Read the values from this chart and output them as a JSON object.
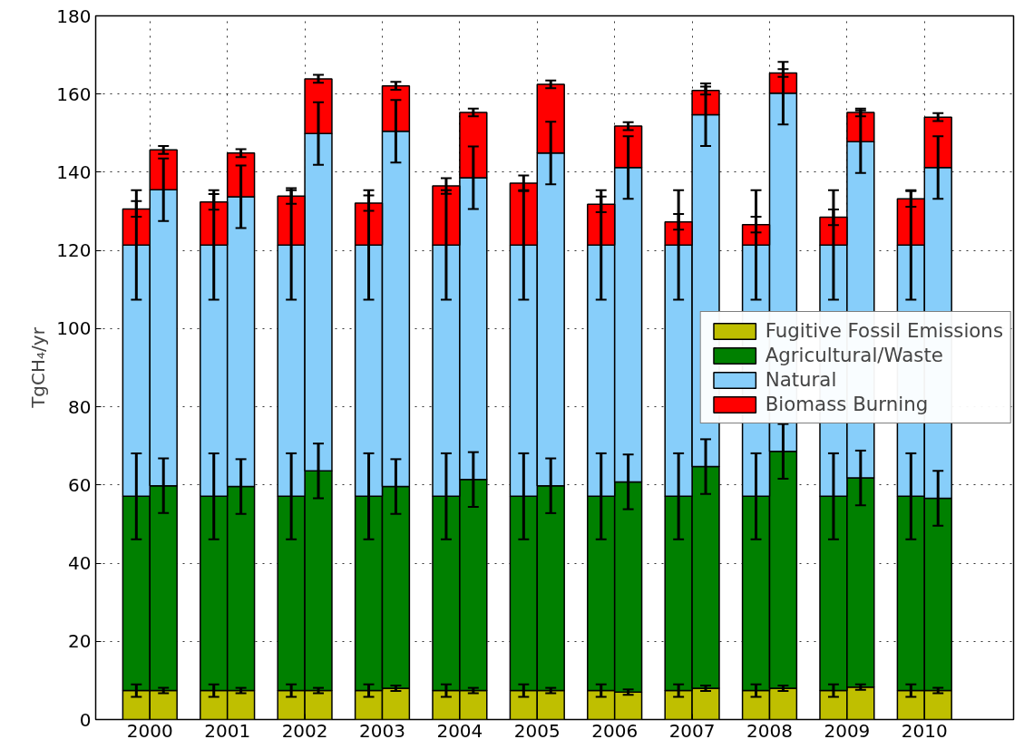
{
  "chart_data": {
    "type": "bar",
    "stacked": true,
    "ylabel": "TgCH₄/yr",
    "x": [
      1999.825,
      2000.175,
      2000.825,
      2001.175,
      2001.825,
      2002.175,
      2002.825,
      2003.175,
      2003.825,
      2004.175,
      2004.825,
      2005.175,
      2005.825,
      2006.175,
      2006.825,
      2007.175,
      2007.825,
      2008.175,
      2008.825,
      2009.175,
      2009.825,
      2010.175
    ],
    "xlim": [
      1999.3,
      2011.15
    ],
    "xticks": [
      2000,
      2001,
      2002,
      2003,
      2004,
      2005,
      2006,
      2007,
      2008,
      2009,
      2010
    ],
    "ylim": [
      0,
      180
    ],
    "yticks": [
      0,
      20,
      40,
      60,
      80,
      100,
      120,
      140,
      160,
      180
    ],
    "grid": true,
    "legend": "right",
    "series": [
      {
        "name": "Fugitive Fossil Emissions",
        "color": "#bfbf00",
        "values": [
          7.4,
          7.4,
          7.4,
          7.4,
          7.4,
          7.4,
          7.4,
          8.0,
          7.4,
          7.4,
          7.4,
          7.4,
          7.4,
          7.0,
          7.4,
          8.0,
          7.4,
          8.0,
          7.4,
          8.3,
          7.4,
          7.4
        ],
        "errors": [
          1.6,
          0.7,
          1.6,
          0.7,
          1.6,
          0.7,
          1.6,
          0.7,
          1.6,
          0.7,
          1.6,
          0.7,
          1.6,
          0.7,
          1.6,
          0.7,
          1.6,
          0.7,
          1.6,
          0.7,
          1.6,
          0.7
        ]
      },
      {
        "name": "Agricultural/Waste",
        "color": "#008000",
        "values": [
          49.7,
          52.4,
          49.7,
          52.2,
          49.7,
          56.2,
          49.7,
          51.6,
          49.7,
          54.0,
          49.7,
          52.4,
          49.7,
          53.8,
          49.7,
          56.7,
          49.7,
          60.6,
          49.7,
          53.5,
          49.7,
          49.2
        ],
        "errors": [
          11,
          7,
          11,
          7,
          11,
          7,
          11,
          7,
          11,
          7,
          11,
          7,
          11,
          7,
          11,
          7,
          11,
          7,
          11,
          7,
          11,
          7
        ]
      },
      {
        "name": "Natural",
        "color": "#87cefa",
        "values": [
          64.3,
          75.7,
          64.3,
          74.1,
          64.3,
          86.3,
          64.3,
          90.9,
          64.3,
          77.2,
          64.3,
          85.1,
          64.3,
          80.4,
          64.3,
          90.0,
          64.3,
          91.6,
          64.3,
          86.0,
          64.3,
          84.6
        ],
        "errors": [
          14,
          8,
          14,
          8,
          14,
          8,
          14,
          8,
          14,
          8,
          14,
          8,
          14,
          8,
          14,
          8,
          14,
          8,
          14,
          8,
          14,
          8
        ]
      },
      {
        "name": "Biomass Burning",
        "color": "#ff0000",
        "values": [
          9.2,
          10.2,
          11.0,
          11.2,
          12.5,
          14.0,
          10.7,
          11.6,
          15.1,
          16.7,
          15.8,
          17.6,
          10.4,
          10.6,
          5.9,
          6.2,
          5.2,
          5.2,
          7.1,
          7.5,
          11.8,
          12.9
        ],
        "errors": [
          2,
          1,
          2,
          1,
          2,
          1,
          2,
          1,
          2,
          1,
          2,
          1,
          2,
          1,
          2,
          1,
          2,
          1,
          2,
          1,
          2,
          1
        ]
      }
    ]
  }
}
